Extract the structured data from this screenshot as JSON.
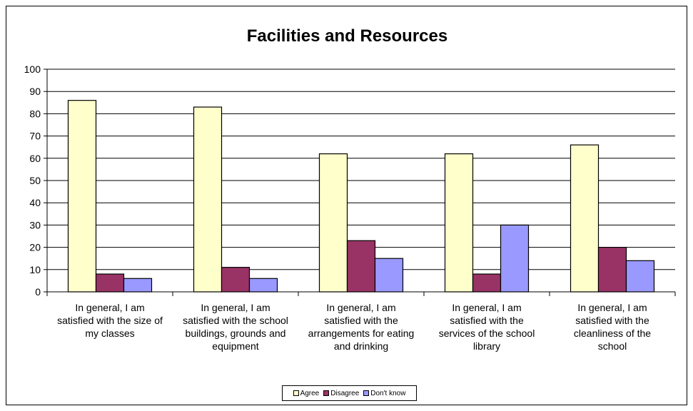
{
  "chart_data": {
    "type": "bar",
    "title": "Facilities and Resources",
    "xlabel": "",
    "ylabel": "",
    "ylim": [
      0,
      100
    ],
    "yticks": [
      "0",
      "10",
      "20",
      "30",
      "40",
      "50",
      "60",
      "70",
      "80",
      "90",
      "100"
    ],
    "grid": true,
    "legend_position": "bottom",
    "categories": [
      [
        "In general, I am",
        "satisfied with the size of",
        "my classes"
      ],
      [
        "In general, I am",
        "satisfied with the school",
        "buildings, grounds and",
        "equipment"
      ],
      [
        "In general, I am",
        "satisfied with the",
        "arrangements for eating",
        "and drinking"
      ],
      [
        "In general, I am",
        "satisfied with the",
        "services of the school",
        "library"
      ],
      [
        "In general, I am",
        "satisfied with the",
        "cleanliness of the",
        "school"
      ]
    ],
    "series": [
      {
        "name": "Agree",
        "color": "#ffffcc",
        "values": [
          86,
          83,
          62,
          62,
          66
        ]
      },
      {
        "name": "Disagree",
        "color": "#993366",
        "values": [
          8,
          11,
          23,
          8,
          20
        ]
      },
      {
        "name": "Don't know",
        "color": "#9999ff",
        "values": [
          6,
          6,
          15,
          30,
          14
        ]
      }
    ]
  }
}
